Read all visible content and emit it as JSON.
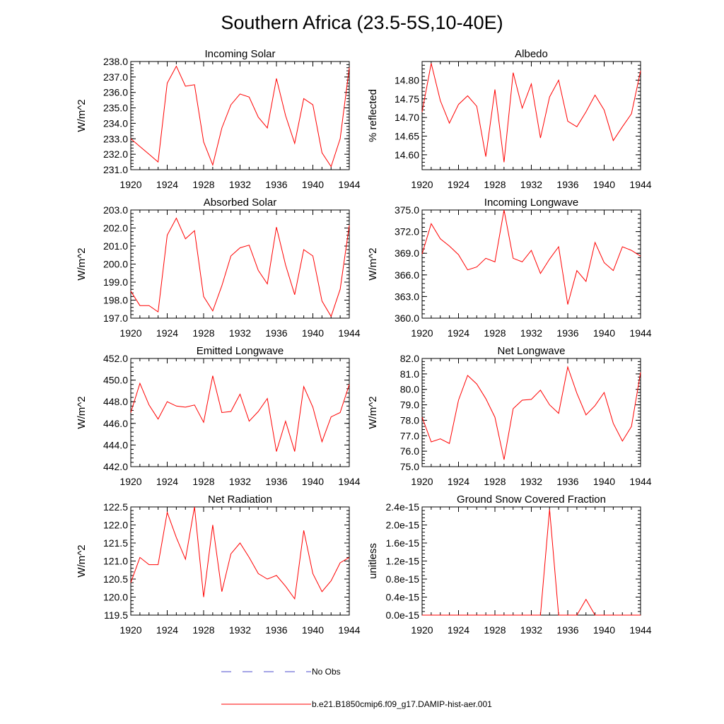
{
  "figure": {
    "title": "Southern Africa (23.5-5S,10-40E)",
    "series_color": "#ff0000",
    "obs_color": "#4a4acc"
  },
  "legend": {
    "obs_label": "No Obs",
    "model_label": "b.e21.B1850cmip6.f09_g17.DAMIP-hist-aer.001"
  },
  "chart_data": [
    {
      "type": "line",
      "title": "Incoming Solar",
      "ylabel": "W/m^2",
      "xlim": [
        1920,
        1944
      ],
      "ylim": [
        231.0,
        238.0
      ],
      "xticks": [
        "1920",
        "1924",
        "1928",
        "1932",
        "1936",
        "1940",
        "1944"
      ],
      "yticks": [
        "231.0",
        "232.0",
        "233.0",
        "234.0",
        "235.0",
        "236.0",
        "237.0",
        "238.0"
      ],
      "x": [
        1920,
        1921,
        1922,
        1923,
        1924,
        1925,
        1926,
        1927,
        1928,
        1929,
        1930,
        1931,
        1932,
        1933,
        1934,
        1935,
        1936,
        1937,
        1938,
        1939,
        1940,
        1941,
        1942,
        1943,
        1944
      ],
      "values": [
        233.0,
        232.5,
        232.0,
        231.5,
        236.6,
        237.7,
        236.4,
        236.5,
        232.8,
        231.3,
        233.7,
        235.2,
        235.9,
        235.7,
        234.4,
        233.7,
        236.9,
        234.5,
        232.7,
        235.6,
        235.2,
        232.1,
        231.2,
        233.0,
        237.6
      ]
    },
    {
      "type": "line",
      "title": "Albedo",
      "ylabel": "% reflected",
      "xlim": [
        1920,
        1944
      ],
      "ylim": [
        14.56,
        14.85
      ],
      "xticks": [
        "1920",
        "1924",
        "1928",
        "1932",
        "1936",
        "1940",
        "1944"
      ],
      "yticks": [
        "14.60",
        "14.65",
        "14.70",
        "14.75",
        "14.80"
      ],
      "x": [
        1920,
        1921,
        1922,
        1923,
        1924,
        1925,
        1926,
        1927,
        1928,
        1929,
        1930,
        1931,
        1932,
        1933,
        1934,
        1935,
        1936,
        1937,
        1938,
        1939,
        1940,
        1941,
        1942,
        1943,
        1944
      ],
      "values": [
        14.715,
        14.845,
        14.745,
        14.685,
        14.735,
        14.758,
        14.73,
        14.595,
        14.775,
        14.58,
        14.82,
        14.725,
        14.79,
        14.645,
        14.755,
        14.8,
        14.69,
        14.675,
        14.715,
        14.76,
        14.72,
        14.638,
        14.675,
        14.71,
        14.825
      ]
    },
    {
      "type": "line",
      "title": "Absorbed Solar",
      "ylabel": "W/m^2",
      "xlim": [
        1920,
        1944
      ],
      "ylim": [
        197.0,
        203.0
      ],
      "xticks": [
        "1920",
        "1924",
        "1928",
        "1932",
        "1936",
        "1940",
        "1944"
      ],
      "yticks": [
        "197.0",
        "198.0",
        "199.0",
        "200.0",
        "201.0",
        "202.0",
        "203.0"
      ],
      "x": [
        1920,
        1921,
        1922,
        1923,
        1924,
        1925,
        1926,
        1927,
        1928,
        1929,
        1930,
        1931,
        1932,
        1933,
        1934,
        1935,
        1936,
        1937,
        1938,
        1939,
        1940,
        1941,
        1942,
        1943,
        1944
      ],
      "values": [
        198.5,
        197.7,
        197.7,
        197.35,
        201.6,
        202.55,
        201.4,
        201.85,
        198.2,
        197.4,
        198.8,
        200.45,
        200.9,
        201.05,
        199.65,
        198.9,
        202.05,
        199.95,
        198.3,
        200.8,
        200.45,
        197.95,
        197.1,
        198.6,
        202.15
      ]
    },
    {
      "type": "line",
      "title": "Incoming Longwave",
      "ylabel": "W/m^2",
      "xlim": [
        1920,
        1944
      ],
      "ylim": [
        360.0,
        375.0
      ],
      "xticks": [
        "1920",
        "1924",
        "1928",
        "1932",
        "1936",
        "1940",
        "1944"
      ],
      "yticks": [
        "360.0",
        "363.0",
        "366.0",
        "369.0",
        "372.0",
        "375.0"
      ],
      "x": [
        1920,
        1921,
        1922,
        1923,
        1924,
        1925,
        1926,
        1927,
        1928,
        1929,
        1930,
        1931,
        1932,
        1933,
        1934,
        1935,
        1936,
        1937,
        1938,
        1939,
        1940,
        1941,
        1942,
        1943,
        1944
      ],
      "values": [
        368.9,
        373.1,
        371.0,
        370.0,
        368.8,
        366.7,
        367.1,
        368.3,
        367.8,
        375.0,
        368.3,
        367.8,
        369.4,
        366.2,
        368.2,
        369.9,
        361.9,
        366.6,
        365.1,
        370.5,
        367.7,
        366.6,
        369.9,
        369.4,
        368.6
      ]
    },
    {
      "type": "line",
      "title": "Emitted Longwave",
      "ylabel": "W/m^2",
      "xlim": [
        1920,
        1944
      ],
      "ylim": [
        442.0,
        452.0
      ],
      "xticks": [
        "1920",
        "1924",
        "1928",
        "1932",
        "1936",
        "1940",
        "1944"
      ],
      "yticks": [
        "442.0",
        "444.0",
        "446.0",
        "448.0",
        "450.0",
        "452.0"
      ],
      "x": [
        1920,
        1921,
        1922,
        1923,
        1924,
        1925,
        1926,
        1927,
        1928,
        1929,
        1930,
        1931,
        1932,
        1933,
        1934,
        1935,
        1936,
        1937,
        1938,
        1939,
        1940,
        1941,
        1942,
        1943,
        1944
      ],
      "values": [
        447.0,
        449.7,
        447.7,
        446.4,
        448.0,
        447.6,
        447.5,
        447.7,
        446.1,
        450.4,
        447.0,
        447.1,
        448.7,
        446.2,
        447.1,
        448.3,
        443.4,
        446.2,
        443.4,
        449.4,
        447.5,
        444.3,
        446.6,
        447.0,
        449.6
      ]
    },
    {
      "type": "line",
      "title": "Net Longwave",
      "ylabel": "W/m^2",
      "xlim": [
        1920,
        1944
      ],
      "ylim": [
        75.0,
        82.0
      ],
      "xticks": [
        "1920",
        "1924",
        "1928",
        "1932",
        "1936",
        "1940",
        "1944"
      ],
      "yticks": [
        "75.0",
        "76.0",
        "77.0",
        "78.0",
        "79.0",
        "80.0",
        "81.0",
        "82.0"
      ],
      "x": [
        1920,
        1921,
        1922,
        1923,
        1924,
        1925,
        1926,
        1927,
        1928,
        1929,
        1930,
        1931,
        1932,
        1933,
        1934,
        1935,
        1936,
        1937,
        1938,
        1939,
        1940,
        1941,
        1942,
        1943,
        1944
      ],
      "values": [
        78.2,
        76.6,
        76.8,
        76.5,
        79.3,
        80.9,
        80.35,
        79.4,
        78.2,
        75.45,
        78.75,
        79.3,
        79.35,
        79.95,
        79.0,
        78.45,
        81.45,
        79.75,
        78.35,
        78.95,
        79.8,
        77.8,
        76.65,
        77.6,
        81.1
      ]
    },
    {
      "type": "line",
      "title": "Net Radiation",
      "ylabel": "W/m^2",
      "xlim": [
        1920,
        1944
      ],
      "ylim": [
        119.5,
        122.5
      ],
      "xticks": [
        "1920",
        "1924",
        "1928",
        "1932",
        "1936",
        "1940",
        "1944"
      ],
      "yticks": [
        "119.5",
        "120.0",
        "120.5",
        "121.0",
        "121.5",
        "122.0",
        "122.5"
      ],
      "x": [
        1920,
        1921,
        1922,
        1923,
        1924,
        1925,
        1926,
        1927,
        1928,
        1929,
        1930,
        1931,
        1932,
        1933,
        1934,
        1935,
        1936,
        1937,
        1938,
        1939,
        1940,
        1941,
        1942,
        1943,
        1944
      ],
      "values": [
        120.4,
        121.1,
        120.9,
        120.9,
        122.35,
        121.65,
        121.05,
        122.5,
        120.0,
        122.0,
        120.15,
        121.2,
        121.5,
        121.1,
        120.65,
        120.5,
        120.6,
        120.3,
        119.95,
        121.85,
        120.65,
        120.15,
        120.45,
        120.95,
        121.1
      ]
    },
    {
      "type": "line",
      "title": "Ground Snow Covered Fraction",
      "ylabel": "unitless",
      "xlim": [
        1920,
        1944
      ],
      "ylim": [
        0,
        2.4
      ],
      "xticks": [
        "1920",
        "1924",
        "1928",
        "1932",
        "1936",
        "1940",
        "1944"
      ],
      "yticks": [
        "0.0e-15",
        "0.4e-15",
        "0.8e-15",
        "1.2e-15",
        "1.6e-15",
        "2.0e-15",
        "2.4e-15"
      ],
      "x": [
        1920,
        1921,
        1922,
        1923,
        1924,
        1925,
        1926,
        1927,
        1928,
        1929,
        1930,
        1931,
        1932,
        1933,
        1934,
        1935,
        1936,
        1937,
        1938,
        1939,
        1940,
        1941,
        1942,
        1943,
        1944
      ],
      "values": [
        0,
        0,
        0,
        0,
        0,
        0,
        0,
        0,
        0,
        0,
        0,
        0,
        0,
        0,
        2.35,
        0,
        0,
        0,
        0.35,
        0,
        0,
        0,
        0,
        0,
        0
      ]
    }
  ]
}
